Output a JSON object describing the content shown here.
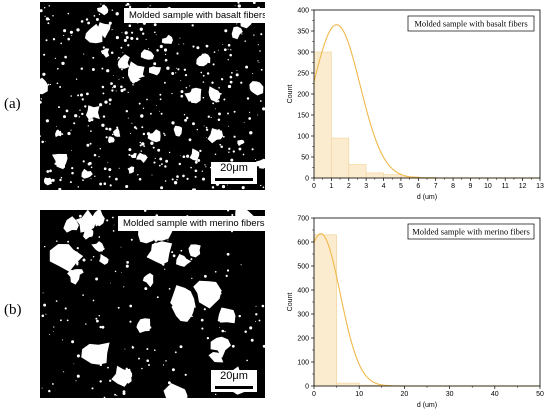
{
  "labels": {
    "a": "(a)",
    "b": "(b)"
  },
  "micrographs": [
    {
      "label": "Molded sample with basalt fibers",
      "scale": "20μm"
    },
    {
      "label": "Molded sample with merino fibers",
      "scale": "20μm"
    }
  ],
  "chart_data": [
    {
      "type": "bar",
      "legend": "Molded sample with basalt fibers",
      "xlabel": "d (um)",
      "ylabel": "Count",
      "xlim": [
        0,
        13
      ],
      "ylim": [
        0,
        400
      ],
      "xticks": [
        0,
        1,
        2,
        3,
        4,
        5,
        6,
        7,
        8,
        9,
        10,
        11,
        12,
        13
      ],
      "yticks": [
        0,
        50,
        100,
        150,
        200,
        250,
        300,
        350,
        400
      ],
      "bins": [
        {
          "x0": 0,
          "x1": 1,
          "count": 300
        },
        {
          "x0": 1,
          "x1": 2,
          "count": 95
        },
        {
          "x0": 2,
          "x1": 3,
          "count": 32
        },
        {
          "x0": 3,
          "x1": 4,
          "count": 12
        },
        {
          "x0": 4,
          "x1": 5,
          "count": 8
        },
        {
          "x0": 5,
          "x1": 6,
          "count": 3
        },
        {
          "x0": 6,
          "x1": 7,
          "count": 1
        }
      ],
      "fit": {
        "type": "normal",
        "mean": 1.3,
        "sd": 1.35,
        "peak": 365
      },
      "colors": {
        "bar_fill": "#fbecd0",
        "bar_edge": "#f3d9a6",
        "curve": "#f0b84a"
      }
    },
    {
      "type": "bar",
      "legend": "Molded sample with merino fibers",
      "xlabel": "d (um)",
      "ylabel": "Count",
      "xlim": [
        0,
        50
      ],
      "ylim": [
        0,
        700
      ],
      "xticks": [
        0,
        10,
        20,
        30,
        40,
        50
      ],
      "yticks": [
        0,
        100,
        200,
        300,
        400,
        500,
        600,
        700
      ],
      "bins": [
        {
          "x0": 0,
          "x1": 5,
          "count": 630
        },
        {
          "x0": 5,
          "x1": 10,
          "count": 12
        },
        {
          "x0": 10,
          "x1": 15,
          "count": 3
        }
      ],
      "fit": {
        "type": "normal",
        "mean": 1.5,
        "sd": 4.3,
        "peak": 635
      },
      "colors": {
        "bar_fill": "#fbecd0",
        "bar_edge": "#f3d9a6",
        "curve": "#f0b84a"
      }
    }
  ]
}
